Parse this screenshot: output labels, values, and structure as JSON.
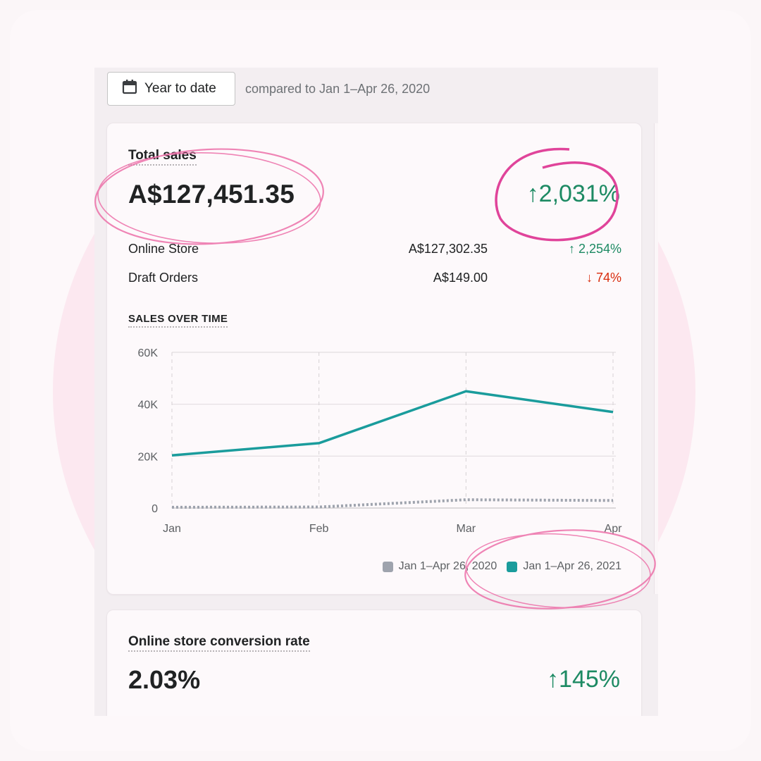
{
  "filter": {
    "date_button_label": "Year to date",
    "comparison_text": "compared to Jan 1–Apr 26, 2020"
  },
  "total_sales": {
    "title": "Total sales",
    "value": "A$127,451.35",
    "change": "↑2,031%",
    "rows": [
      {
        "name": "Online Store",
        "amount": "A$127,302.35",
        "change": "↑ 2,254%",
        "direction": "up"
      },
      {
        "name": "Draft Orders",
        "amount": "A$149.00",
        "change": "↓ 74%",
        "direction": "down"
      }
    ]
  },
  "sales_over_time": {
    "title": "SALES OVER TIME",
    "legend": [
      "Jan 1–Apr 26, 2020",
      "Jan 1–Apr 26, 2021"
    ]
  },
  "conversion": {
    "title": "Online store conversion rate",
    "value": "2.03%",
    "change": "↑145%"
  },
  "colors": {
    "accent_teal": "#1a9c9c",
    "previous_gray": "#9ea3ad",
    "positive": "#1d8a63",
    "negative": "#d82c0d",
    "highlight_pink": "#e85a9f"
  },
  "icons": [
    "calendar-icon"
  ],
  "chart_data": {
    "type": "line",
    "x": [
      "Jan",
      "Feb",
      "Mar",
      "Apr"
    ],
    "ylim": [
      0,
      60000
    ],
    "ytick_labels": [
      "0",
      "20K",
      "40K",
      "60K"
    ],
    "yticks": [
      0,
      20000,
      40000,
      60000
    ],
    "grid": true,
    "legend_position": "bottom-right",
    "series": [
      {
        "name": "Jan 1–Apr 26, 2020",
        "style": "dotted",
        "color": "#9ea3ad",
        "values": [
          300,
          400,
          3200,
          2900
        ]
      },
      {
        "name": "Jan 1–Apr 26, 2021",
        "style": "solid",
        "color": "#1a9c9c",
        "values": [
          20300,
          25000,
          45000,
          37000
        ]
      }
    ]
  }
}
